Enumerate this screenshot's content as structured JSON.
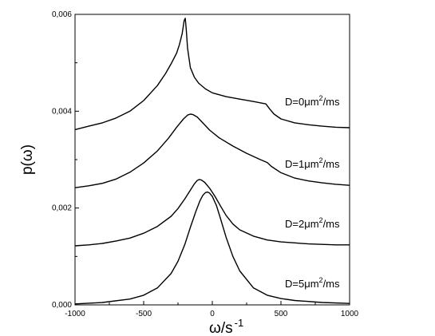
{
  "chart_data": {
    "type": "line",
    "title": "",
    "xlabel": "ω/s",
    "xlabel_superscript": "-1",
    "ylabel": "p(ω)",
    "xlim": [
      -1000,
      1000
    ],
    "ylim": [
      0,
      0.006
    ],
    "x_ticks": [
      {
        "value": -1000,
        "label": "-1000"
      },
      {
        "value": -500,
        "label": "-500"
      },
      {
        "value": 0,
        "label": "0"
      },
      {
        "value": 500,
        "label": "500"
      },
      {
        "value": 1000,
        "label": "1000"
      }
    ],
    "y_ticks": [
      {
        "value": 0,
        "label": "0,000"
      },
      {
        "value": 0.002,
        "label": "0,002"
      },
      {
        "value": 0.004,
        "label": "0,004"
      },
      {
        "value": 0.006,
        "label": "0,006"
      }
    ],
    "grid": false,
    "line_color": "#000000",
    "series": [
      {
        "label_parts": [
          "D=0",
          "μm",
          "2",
          "/ms"
        ],
        "points": [
          [
            -1000,
            0.00362
          ],
          [
            -900,
            0.00369
          ],
          [
            -800,
            0.00376
          ],
          [
            -700,
            0.00386
          ],
          [
            -600,
            0.004
          ],
          [
            -500,
            0.00422
          ],
          [
            -400,
            0.00453
          ],
          [
            -340,
            0.00478
          ],
          [
            -300,
            0.00498
          ],
          [
            -260,
            0.0052
          ],
          [
            -240,
            0.00537
          ],
          [
            -220,
            0.0056
          ],
          [
            -205,
            0.00587
          ],
          [
            -197,
            0.00592
          ],
          [
            -190,
            0.0057
          ],
          [
            -180,
            0.0053
          ],
          [
            -160,
            0.0049
          ],
          [
            -130,
            0.0047
          ],
          [
            -100,
            0.00458
          ],
          [
            -50,
            0.00446
          ],
          [
            0,
            0.00438
          ],
          [
            100,
            0.0043
          ],
          [
            200,
            0.00425
          ],
          [
            300,
            0.0042
          ],
          [
            390,
            0.00415
          ],
          [
            420,
            0.00404
          ],
          [
            450,
            0.00394
          ],
          [
            500,
            0.00384
          ],
          [
            600,
            0.00376
          ],
          [
            700,
            0.00372
          ],
          [
            800,
            0.00369
          ],
          [
            900,
            0.00367
          ],
          [
            1000,
            0.00366
          ]
        ]
      },
      {
        "label_parts": [
          "D=1",
          "μm",
          "2",
          "/ms"
        ],
        "points": [
          [
            -1000,
            0.00242
          ],
          [
            -900,
            0.00246
          ],
          [
            -800,
            0.00251
          ],
          [
            -700,
            0.0026
          ],
          [
            -600,
            0.00274
          ],
          [
            -500,
            0.00293
          ],
          [
            -400,
            0.00318
          ],
          [
            -320,
            0.00344
          ],
          [
            -260,
            0.00367
          ],
          [
            -210,
            0.00384
          ],
          [
            -180,
            0.00392
          ],
          [
            -160,
            0.00394
          ],
          [
            -140,
            0.00393
          ],
          [
            -110,
            0.00388
          ],
          [
            -70,
            0.00376
          ],
          [
            -20,
            0.00361
          ],
          [
            50,
            0.00345
          ],
          [
            150,
            0.00328
          ],
          [
            250,
            0.00313
          ],
          [
            350,
            0.003
          ],
          [
            400,
            0.00294
          ],
          [
            430,
            0.00286
          ],
          [
            500,
            0.00273
          ],
          [
            600,
            0.00262
          ],
          [
            700,
            0.00256
          ],
          [
            800,
            0.00252
          ],
          [
            900,
            0.00249
          ],
          [
            1000,
            0.00247
          ]
        ]
      },
      {
        "label_parts": [
          "D=2",
          "μm",
          "2",
          "/ms"
        ],
        "points": [
          [
            -1000,
            0.00122
          ],
          [
            -900,
            0.00124
          ],
          [
            -800,
            0.00127
          ],
          [
            -700,
            0.00132
          ],
          [
            -600,
            0.00138
          ],
          [
            -500,
            0.00148
          ],
          [
            -400,
            0.00162
          ],
          [
            -300,
            0.00183
          ],
          [
            -250,
            0.00199
          ],
          [
            -200,
            0.00219
          ],
          [
            -160,
            0.00237
          ],
          [
            -130,
            0.0025
          ],
          [
            -110,
            0.00257
          ],
          [
            -95,
            0.00259
          ],
          [
            -80,
            0.00258
          ],
          [
            -55,
            0.00253
          ],
          [
            -20,
            0.00241
          ],
          [
            20,
            0.00224
          ],
          [
            60,
            0.00204
          ],
          [
            100,
            0.00185
          ],
          [
            150,
            0.00167
          ],
          [
            200,
            0.00155
          ],
          [
            300,
            0.00142
          ],
          [
            400,
            0.00134
          ],
          [
            500,
            0.0013
          ],
          [
            600,
            0.00128
          ],
          [
            700,
            0.00126
          ],
          [
            800,
            0.00125
          ],
          [
            900,
            0.00124
          ],
          [
            1000,
            0.00124
          ]
        ]
      },
      {
        "label_parts": [
          "D=5",
          "μm",
          "2",
          "/ms"
        ],
        "points": [
          [
            -1000,
            2e-05
          ],
          [
            -800,
            5e-05
          ],
          [
            -600,
            0.00012
          ],
          [
            -500,
            0.0002
          ],
          [
            -400,
            0.00035
          ],
          [
            -300,
            0.00065
          ],
          [
            -250,
            0.0009
          ],
          [
            -200,
            0.00125
          ],
          [
            -160,
            0.0016
          ],
          [
            -120,
            0.00193
          ],
          [
            -90,
            0.00215
          ],
          [
            -70,
            0.00226
          ],
          [
            -50,
            0.00232
          ],
          [
            -35,
            0.00233
          ],
          [
            -20,
            0.00231
          ],
          [
            0,
            0.00224
          ],
          [
            30,
            0.00205
          ],
          [
            60,
            0.00178
          ],
          [
            100,
            0.0014
          ],
          [
            150,
            0.001
          ],
          [
            200,
            0.0007
          ],
          [
            300,
            0.00035
          ],
          [
            400,
            0.0002
          ],
          [
            500,
            0.00013
          ],
          [
            600,
            9e-05
          ],
          [
            800,
            5e-05
          ],
          [
            1000,
            3e-05
          ]
        ]
      }
    ]
  }
}
